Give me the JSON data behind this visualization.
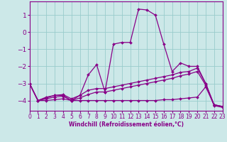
{
  "xlabel": "Windchill (Refroidissement éolien,°C)",
  "background_color": "#cce8e8",
  "grid_color": "#99cccc",
  "line_color": "#880088",
  "xlim": [
    0,
    23
  ],
  "ylim": [
    -4.6,
    1.8
  ],
  "yticks": [
    1,
    0,
    -1,
    -2,
    -3,
    -4
  ],
  "xticks": [
    0,
    1,
    2,
    3,
    4,
    5,
    6,
    7,
    8,
    9,
    10,
    11,
    12,
    13,
    14,
    15,
    16,
    17,
    18,
    19,
    20,
    21,
    22,
    23
  ],
  "series": [
    {
      "x": [
        0,
        1,
        2,
        3,
        4,
        5,
        6,
        7,
        8,
        9,
        10,
        11,
        12,
        13,
        14,
        15,
        16,
        17,
        18,
        19,
        20,
        21,
        22,
        23
      ],
      "y": [
        -3.0,
        -4.0,
        -3.8,
        -3.7,
        -3.7,
        -4.0,
        -3.7,
        -2.5,
        -1.9,
        -3.5,
        -0.7,
        -0.6,
        -0.6,
        1.35,
        1.3,
        1.0,
        -0.7,
        -2.3,
        -1.8,
        -2.0,
        -2.0,
        -3.0,
        -4.25,
        -4.35
      ]
    },
    {
      "x": [
        0,
        1,
        2,
        3,
        4,
        5,
        6,
        7,
        8,
        9,
        10,
        11,
        12,
        13,
        14,
        15,
        16,
        17,
        18,
        19,
        20,
        21,
        22,
        23
      ],
      "y": [
        -3.0,
        -4.0,
        -3.85,
        -3.7,
        -3.65,
        -3.9,
        -3.7,
        -3.4,
        -3.3,
        -3.3,
        -3.2,
        -3.1,
        -3.0,
        -2.9,
        -2.8,
        -2.7,
        -2.6,
        -2.5,
        -2.35,
        -2.3,
        -2.1,
        -3.0,
        -4.25,
        -4.35
      ]
    },
    {
      "x": [
        0,
        1,
        2,
        3,
        4,
        5,
        6,
        7,
        8,
        9,
        10,
        11,
        12,
        13,
        14,
        15,
        16,
        17,
        18,
        19,
        20,
        21,
        22,
        23
      ],
      "y": [
        -3.0,
        -4.0,
        -3.9,
        -3.8,
        -3.75,
        -4.0,
        -3.85,
        -3.65,
        -3.5,
        -3.5,
        -3.4,
        -3.3,
        -3.2,
        -3.1,
        -3.0,
        -2.9,
        -2.8,
        -2.7,
        -2.55,
        -2.45,
        -2.3,
        -3.1,
        -4.3,
        -4.4
      ]
    },
    {
      "x": [
        0,
        1,
        2,
        3,
        4,
        5,
        6,
        7,
        8,
        9,
        10,
        11,
        12,
        13,
        14,
        15,
        16,
        17,
        18,
        19,
        20,
        21,
        22,
        23
      ],
      "y": [
        -3.0,
        -4.0,
        -4.0,
        -3.95,
        -3.9,
        -4.0,
        -4.0,
        -4.0,
        -4.0,
        -4.0,
        -4.0,
        -4.0,
        -4.0,
        -4.0,
        -4.0,
        -4.0,
        -3.95,
        -3.95,
        -3.9,
        -3.85,
        -3.8,
        -3.2,
        -4.25,
        -4.35
      ]
    }
  ]
}
